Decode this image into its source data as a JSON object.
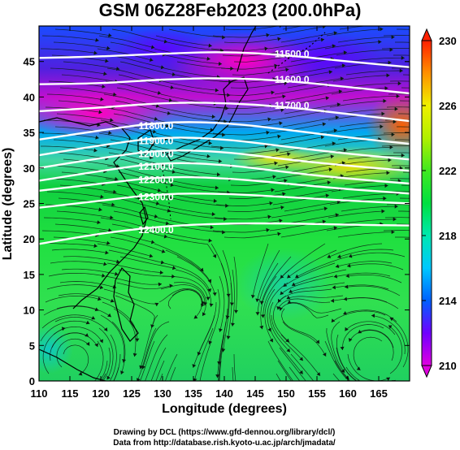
{
  "title": "GSM 06Z28Feb2023 (200.0hPa)",
  "xlabel": "Longitude (degrees)",
  "ylabel": "Latitude (degrees)",
  "credits": {
    "line1": "Drawing by DCL (https://www.gfd-dennou.org/library/dcl/)",
    "line2": "Data from http://database.rish.kyoto-u.ac.jp/arch/jmadata/"
  },
  "chart_data": {
    "type": "heatmap",
    "xlim": [
      110,
      170
    ],
    "ylim": [
      0,
      50
    ],
    "xticks": [
      110,
      115,
      120,
      125,
      130,
      135,
      140,
      145,
      150,
      155,
      160,
      165
    ],
    "yticks": [
      0,
      5,
      10,
      15,
      20,
      25,
      30,
      35,
      40,
      45
    ],
    "colorbar": {
      "min": 210,
      "max": 230,
      "ticks": [
        210,
        214,
        218,
        222,
        226,
        230
      ],
      "colors": [
        "#e000e0",
        "#7000ff",
        "#0060ff",
        "#00c8ff",
        "#00e8b0",
        "#00e040",
        "#80f000",
        "#f0f000",
        "#ff9000",
        "#ff2000"
      ]
    },
    "contours": [
      {
        "label": "11500.0",
        "lon": [
          110,
          120,
          130,
          140,
          150,
          160,
          170
        ],
        "lat": [
          45.5,
          45.7,
          46.1,
          46.4,
          45.9,
          45.0,
          44.2
        ]
      },
      {
        "label": "11600.0",
        "lon": [
          110,
          120,
          130,
          140,
          150,
          160,
          170
        ],
        "lat": [
          41.8,
          41.9,
          42.5,
          42.7,
          42.3,
          41.4,
          40.5
        ]
      },
      {
        "label": "11700.0",
        "lon": [
          110,
          120,
          130,
          140,
          150,
          160,
          170
        ],
        "lat": [
          38.0,
          38.5,
          39.2,
          39.2,
          38.6,
          37.6,
          36.6
        ]
      },
      {
        "label": "11800.0",
        "lon": [
          110,
          120,
          130,
          140,
          150,
          160,
          170
        ],
        "lat": [
          34.0,
          35.3,
          36.5,
          36.4,
          35.4,
          34.3,
          33.4
        ]
      },
      {
        "label": "11900.0",
        "lon": [
          110,
          120,
          130,
          140,
          150,
          160,
          170
        ],
        "lat": [
          31.8,
          33.2,
          34.4,
          34.1,
          33.0,
          32.0,
          31.2
        ]
      },
      {
        "label": "12000.0",
        "lon": [
          110,
          120,
          130,
          140,
          150,
          160,
          170
        ],
        "lat": [
          30.0,
          31.4,
          32.6,
          32.3,
          31.2,
          30.3,
          29.6
        ]
      },
      {
        "label": "12100.0",
        "lon": [
          110,
          120,
          130,
          140,
          150,
          160,
          170
        ],
        "lat": [
          28.2,
          29.6,
          30.8,
          30.5,
          29.4,
          28.5,
          27.8
        ]
      },
      {
        "label": "12200.0",
        "lon": [
          110,
          120,
          130,
          140,
          150,
          160,
          170
        ],
        "lat": [
          26.8,
          27.8,
          28.8,
          28.6,
          27.8,
          27.0,
          26.4
        ]
      },
      {
        "label": "12300.0",
        "lon": [
          110,
          120,
          130,
          140,
          150,
          160,
          170
        ],
        "lat": [
          24.4,
          25.4,
          26.4,
          26.4,
          25.9,
          25.4,
          25.0
        ]
      },
      {
        "label": "12400.0",
        "lon": [
          110,
          120,
          130,
          140,
          150,
          160,
          170
        ],
        "lat": [
          19.3,
          20.8,
          21.8,
          22.2,
          22.2,
          22.0,
          21.9
        ]
      }
    ]
  }
}
